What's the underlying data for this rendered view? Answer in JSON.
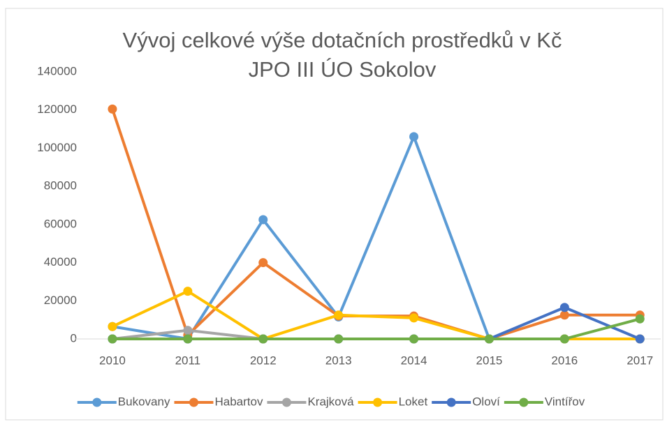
{
  "chart_data": {
    "type": "line",
    "title": [
      "Vývoj celkové výše dotačních prostředků v Kč",
      "JPO III ÚO Sokolov"
    ],
    "categories": [
      "2010",
      "2011",
      "2012",
      "2013",
      "2014",
      "2015",
      "2016",
      "2017"
    ],
    "series": [
      {
        "name": "Bukovany",
        "color": "#5b9bd5",
        "values": [
          6500,
          0,
          62500,
          11500,
          106000,
          0,
          0,
          0
        ]
      },
      {
        "name": "Habartov",
        "color": "#ed7d31",
        "values": [
          120500,
          2000,
          40000,
          12000,
          12000,
          0,
          12500,
          12500
        ]
      },
      {
        "name": "Krajková",
        "color": "#a5a5a5",
        "values": [
          0,
          4500,
          0,
          0,
          0,
          0,
          0,
          0
        ]
      },
      {
        "name": "Loket",
        "color": "#ffc000",
        "values": [
          6500,
          25000,
          0,
          12500,
          11000,
          0,
          0,
          0
        ]
      },
      {
        "name": "Oloví",
        "color": "#4472c4",
        "values": [
          0,
          0,
          0,
          0,
          0,
          0,
          16500,
          0
        ]
      },
      {
        "name": "Vintířov",
        "color": "#70ad47",
        "values": [
          0,
          0,
          0,
          0,
          0,
          0,
          0,
          10500
        ]
      }
    ],
    "ylim": [
      0,
      140000
    ],
    "yticks": [
      0,
      20000,
      40000,
      60000,
      80000,
      100000,
      120000,
      140000
    ],
    "grid": false,
    "legend": "bottom"
  }
}
